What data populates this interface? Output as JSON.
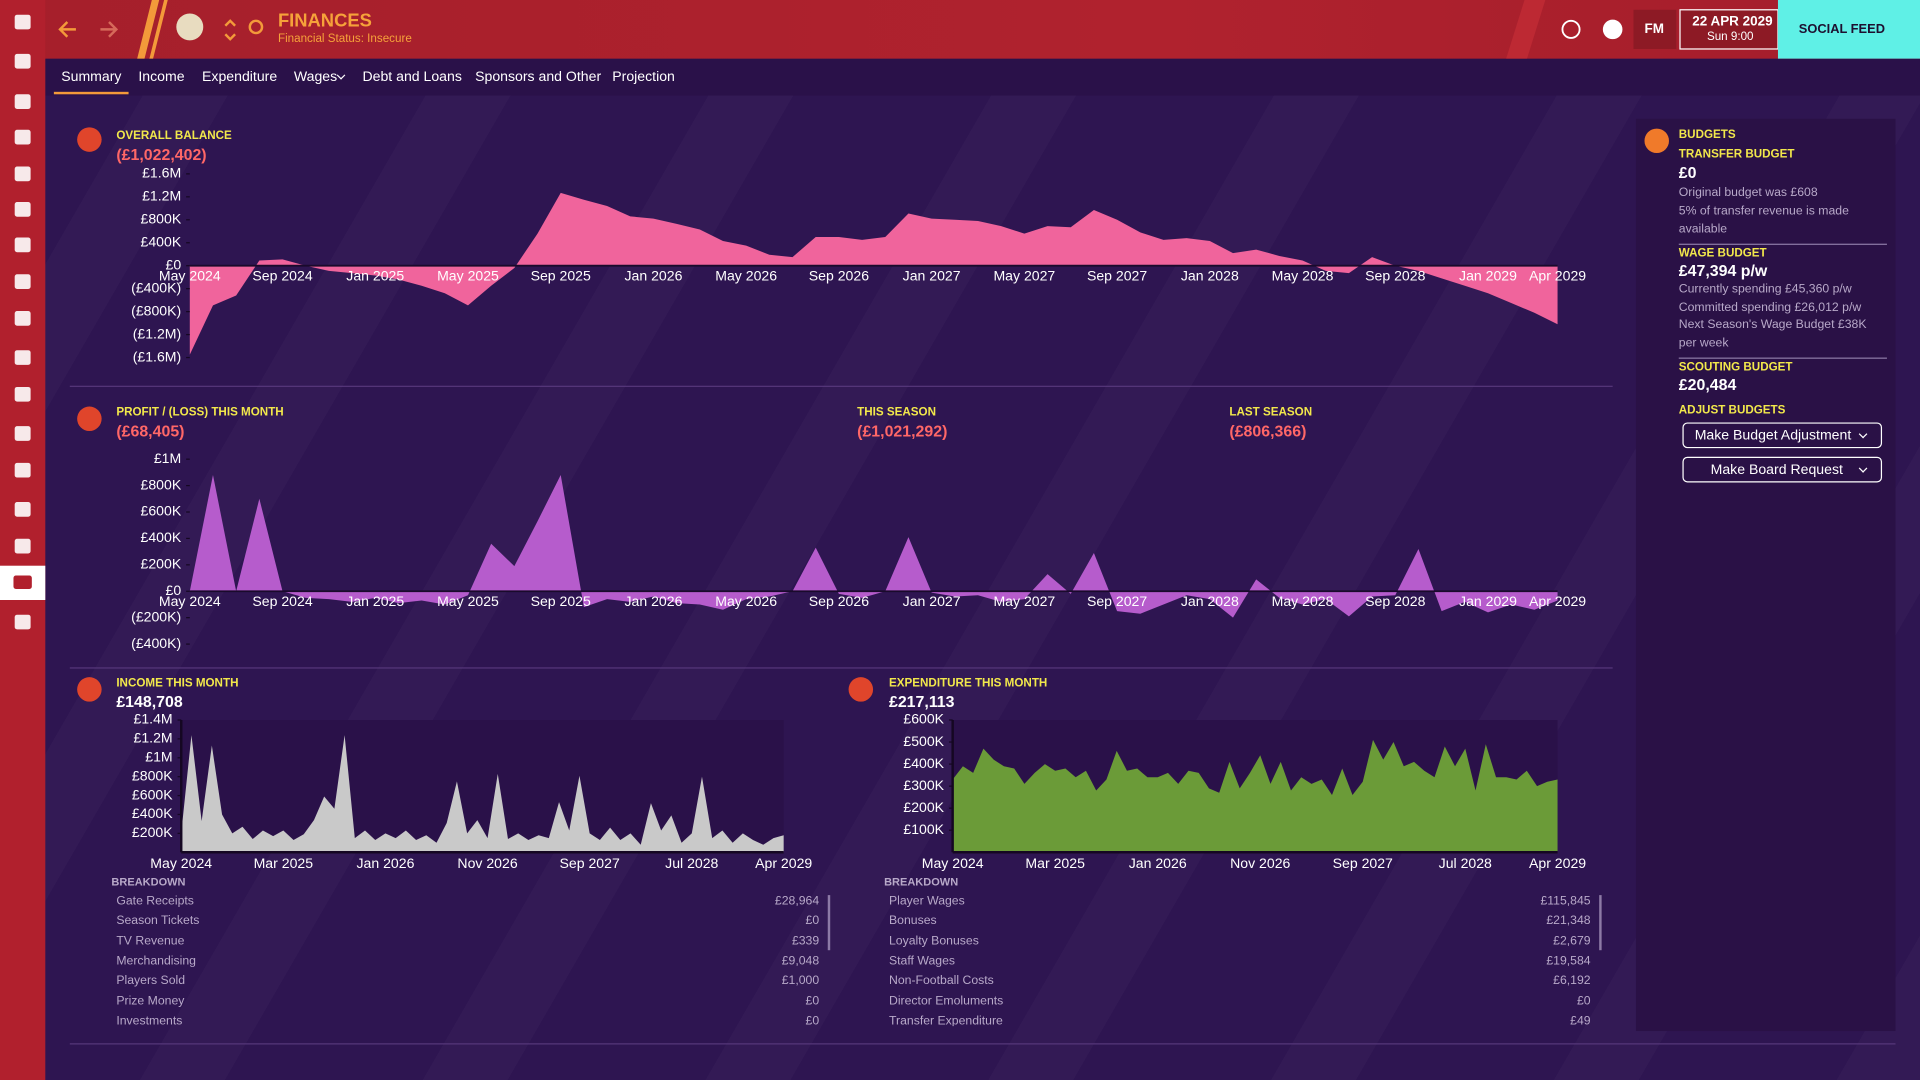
{
  "header": {
    "title": "FINANCES",
    "status": "Financial Status: Insecure",
    "brand": "FM",
    "date": "22 APR 2029",
    "time": "Sun 9:00",
    "social": "SOCIAL FEED"
  },
  "tabs": [
    "Summary",
    "Income",
    "Expenditure",
    "Wages",
    "Debt and Loans",
    "Sponsors and Other",
    "Projection"
  ],
  "chart_data": [
    {
      "type": "area",
      "title": "OVERALL BALANCE",
      "subtitle": "(£1,022,402)",
      "color": "#f0649c",
      "categories": [
        "May 2024",
        null,
        null,
        null,
        "Sep 2024",
        null,
        null,
        null,
        "Jan 2025",
        null,
        null,
        null,
        "May 2025",
        null,
        null,
        null,
        "Sep 2025",
        null,
        null,
        null,
        "Jan 2026",
        null,
        null,
        null,
        "May 2026",
        null,
        null,
        null,
        "Sep 2026",
        null,
        null,
        null,
        "Jan 2027",
        null,
        null,
        null,
        "May 2027",
        null,
        null,
        null,
        "Sep 2027",
        null,
        null,
        null,
        "Jan 2028",
        null,
        null,
        null,
        "May 2028",
        null,
        null,
        null,
        "Sep 2028",
        null,
        null,
        null,
        "Jan 2029",
        null,
        null,
        "Apr 2029"
      ],
      "values": [
        -1550000,
        -690000,
        -520000,
        90000,
        110000,
        0,
        -90000,
        -130000,
        -170000,
        -240000,
        -350000,
        -480000,
        -690000,
        -350000,
        -40000,
        560000,
        1270000,
        1150000,
        1040000,
        860000,
        820000,
        730000,
        630000,
        430000,
        350000,
        190000,
        150000,
        500000,
        500000,
        450000,
        500000,
        910000,
        820000,
        800000,
        780000,
        690000,
        560000,
        690000,
        670000,
        970000,
        800000,
        580000,
        450000,
        480000,
        430000,
        220000,
        280000,
        170000,
        90000,
        -90000,
        -130000,
        150000,
        0,
        -90000,
        -220000,
        -350000,
        -480000,
        -650000,
        -820000,
        -1020000
      ],
      "ylim": [
        -1600000,
        1600000
      ],
      "yticks": [
        {
          "value": 1600000,
          "label": "£1.6M"
        },
        {
          "value": 1200000,
          "label": "£1.2M"
        },
        {
          "value": 800000,
          "label": "£800K"
        },
        {
          "value": 400000,
          "label": "£400K"
        },
        {
          "value": 0,
          "label": "£0"
        },
        {
          "value": -400000,
          "label": "(£400K)"
        },
        {
          "value": -800000,
          "label": "(£800K)"
        },
        {
          "value": -1200000,
          "label": "(£1.2M)"
        },
        {
          "value": -1600000,
          "label": "(£1.6M)"
        }
      ]
    },
    {
      "type": "area",
      "title": "PROFIT / (LOSS) THIS MONTH",
      "subtitle": "(£68,405)",
      "color": "#b65ccc",
      "annotations": [
        {
          "label": "THIS SEASON",
          "value": "(£1,021,292)"
        },
        {
          "label": "LAST SEASON",
          "value": "(£806,366)"
        }
      ],
      "categories": [
        "May 2024",
        null,
        null,
        null,
        "Sep 2024",
        null,
        null,
        null,
        "Jan 2025",
        null,
        null,
        null,
        "May 2025",
        null,
        null,
        null,
        "Sep 2025",
        null,
        null,
        null,
        "Jan 2026",
        null,
        null,
        null,
        "May 2026",
        null,
        null,
        null,
        "Sep 2026",
        null,
        null,
        null,
        "Jan 2027",
        null,
        null,
        null,
        "May 2027",
        null,
        null,
        null,
        "Sep 2027",
        null,
        null,
        null,
        "Jan 2028",
        null,
        null,
        null,
        "May 2028",
        null,
        null,
        null,
        "Sep 2028",
        null,
        null,
        null,
        "Jan 2029",
        null,
        null,
        "Apr 2029"
      ],
      "values": [
        0,
        880000,
        0,
        700000,
        0,
        -50000,
        -60000,
        -80000,
        -50000,
        -90000,
        -70000,
        -100000,
        -30000,
        360000,
        190000,
        530000,
        880000,
        -120000,
        -60000,
        -80000,
        -40000,
        -90000,
        -100000,
        -140000,
        -60000,
        -40000,
        0,
        330000,
        -20000,
        -50000,
        0,
        410000,
        -10000,
        -40000,
        -30000,
        -80000,
        -60000,
        130000,
        -20000,
        290000,
        -150000,
        -170000,
        -100000,
        -30000,
        -60000,
        -200000,
        90000,
        -50000,
        -100000,
        -60000,
        -190000,
        -40000,
        -30000,
        320000,
        -150000,
        -80000,
        -160000,
        -100000,
        -140000,
        -70000
      ],
      "ylim": [
        -400000,
        1000000
      ],
      "yticks": [
        {
          "value": 1000000,
          "label": "£1M"
        },
        {
          "value": 800000,
          "label": "£800K"
        },
        {
          "value": 600000,
          "label": "£600K"
        },
        {
          "value": 400000,
          "label": "£400K"
        },
        {
          "value": 200000,
          "label": "£200K"
        },
        {
          "value": 0,
          "label": "£0"
        },
        {
          "value": -200000,
          "label": "(£200K)"
        },
        {
          "value": -400000,
          "label": "(£400K)"
        }
      ]
    },
    {
      "type": "area",
      "title": "INCOME THIS MONTH",
      "subtitle": "£148,708",
      "color": "#c9c9c9",
      "categories": [
        "May 2024",
        null,
        null,
        null,
        null,
        null,
        null,
        null,
        null,
        null,
        "Mar 2025",
        null,
        null,
        null,
        null,
        null,
        null,
        null,
        null,
        null,
        "Jan 2026",
        null,
        null,
        null,
        null,
        null,
        null,
        null,
        null,
        null,
        "Nov 2026",
        null,
        null,
        null,
        null,
        null,
        null,
        null,
        null,
        null,
        "Sep 2027",
        null,
        null,
        null,
        null,
        null,
        null,
        null,
        null,
        null,
        "Jul 2028",
        null,
        null,
        null,
        null,
        null,
        null,
        null,
        null,
        "Apr 2029"
      ],
      "values": [
        200000,
        1240000,
        330000,
        1130000,
        400000,
        200000,
        270000,
        140000,
        230000,
        170000,
        230000,
        130000,
        190000,
        340000,
        590000,
        460000,
        1240000,
        150000,
        230000,
        130000,
        200000,
        150000,
        230000,
        130000,
        180000,
        100000,
        310000,
        750000,
        200000,
        340000,
        150000,
        830000,
        140000,
        200000,
        130000,
        180000,
        150000,
        530000,
        230000,
        810000,
        200000,
        130000,
        260000,
        130000,
        200000,
        80000,
        520000,
        230000,
        390000,
        100000,
        200000,
        800000,
        150000,
        230000,
        100000,
        200000,
        130000,
        80000,
        150000,
        180000
      ],
      "ylim": [
        0,
        1400000
      ],
      "yticks": [
        {
          "value": 200000,
          "label": "£200K"
        },
        {
          "value": 400000,
          "label": "£400K"
        },
        {
          "value": 600000,
          "label": "£600K"
        },
        {
          "value": 800000,
          "label": "£800K"
        },
        {
          "value": 1000000,
          "label": "£1M"
        },
        {
          "value": 1200000,
          "label": "£1.2M"
        },
        {
          "value": 1400000,
          "label": "£1.4M"
        }
      ]
    },
    {
      "type": "area",
      "title": "EXPENDITURE THIS MONTH",
      "subtitle": "£217,113",
      "color": "#6b9b38",
      "categories": [
        "May 2024",
        null,
        null,
        null,
        null,
        null,
        null,
        null,
        null,
        null,
        "Mar 2025",
        null,
        null,
        null,
        null,
        null,
        null,
        null,
        null,
        null,
        "Jan 2026",
        null,
        null,
        null,
        null,
        null,
        null,
        null,
        null,
        null,
        "Nov 2026",
        null,
        null,
        null,
        null,
        null,
        null,
        null,
        null,
        null,
        "Sep 2027",
        null,
        null,
        null,
        null,
        null,
        null,
        null,
        null,
        null,
        "Jul 2028",
        null,
        null,
        null,
        null,
        null,
        null,
        null,
        null,
        "Apr 2029"
      ],
      "values": [
        330000,
        390000,
        360000,
        470000,
        420000,
        390000,
        380000,
        310000,
        360000,
        400000,
        370000,
        380000,
        340000,
        370000,
        280000,
        330000,
        460000,
        370000,
        380000,
        340000,
        340000,
        360000,
        310000,
        370000,
        360000,
        290000,
        270000,
        410000,
        290000,
        360000,
        440000,
        310000,
        410000,
        280000,
        340000,
        310000,
        330000,
        260000,
        380000,
        260000,
        320000,
        510000,
        420000,
        500000,
        390000,
        410000,
        370000,
        340000,
        480000,
        390000,
        470000,
        280000,
        490000,
        340000,
        340000,
        330000,
        370000,
        300000,
        320000,
        330000
      ],
      "ylim": [
        0,
        600000
      ],
      "yticks": [
        {
          "value": 100000,
          "label": "£100K"
        },
        {
          "value": 200000,
          "label": "£200K"
        },
        {
          "value": 300000,
          "label": "£300K"
        },
        {
          "value": 400000,
          "label": "£400K"
        },
        {
          "value": 500000,
          "label": "£500K"
        },
        {
          "value": 600000,
          "label": "£600K"
        }
      ]
    }
  ],
  "income_breakdown": {
    "title": "BREAKDOWN",
    "rows": [
      [
        "Gate Receipts",
        "£28,964"
      ],
      [
        "Season Tickets",
        "£0"
      ],
      [
        "TV Revenue",
        "£339"
      ],
      [
        "Merchandising",
        "£9,048"
      ],
      [
        "Players Sold",
        "£1,000"
      ],
      [
        "Prize Money",
        "£0"
      ],
      [
        "Investments",
        "£0"
      ]
    ]
  },
  "expenditure_breakdown": {
    "title": "BREAKDOWN",
    "rows": [
      [
        "Player Wages",
        "£115,845"
      ],
      [
        "Bonuses",
        "£21,348"
      ],
      [
        "Loyalty Bonuses",
        "£2,679"
      ],
      [
        "Staff Wages",
        "£19,584"
      ],
      [
        "Non-Football Costs",
        "£6,192"
      ],
      [
        "Director Emoluments",
        "£0"
      ],
      [
        "Transfer Expenditure",
        "£49"
      ]
    ]
  },
  "budgets": {
    "title": "BUDGETS",
    "transfer": {
      "label": "TRANSFER BUDGET",
      "value": "£0",
      "notes": [
        "Original budget was £608",
        "5% of transfer revenue is made available"
      ]
    },
    "wage": {
      "label": "WAGE BUDGET",
      "value": "£47,394 p/w",
      "notes": [
        "Currently spending £45,360 p/w",
        "Committed spending £26,012 p/w",
        "Next Season's Wage Budget £38K per week"
      ]
    },
    "scouting": {
      "label": "SCOUTING BUDGET",
      "value": "£20,484"
    },
    "adjust": {
      "label": "ADJUST BUDGETS",
      "buttons": [
        "Make Budget Adjustment",
        "Make Board Request"
      ]
    }
  }
}
